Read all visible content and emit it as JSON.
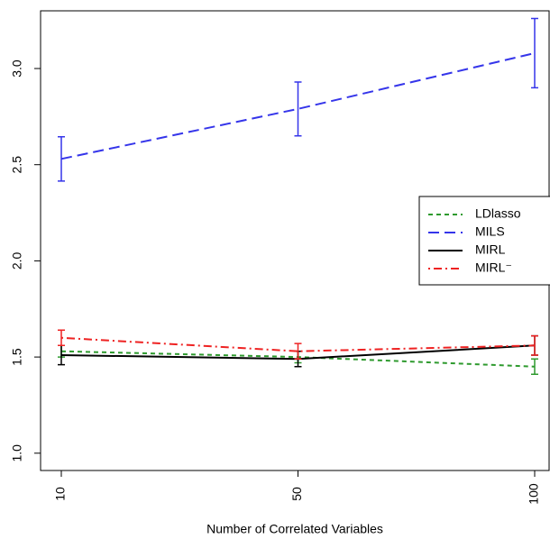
{
  "chart_data": {
    "type": "line",
    "x_label": "Number of Correlated Variables",
    "categories": [
      "10",
      "50",
      "100"
    ],
    "ylim": [
      0.91,
      3.3
    ],
    "yticks": [
      {
        "value": 1.0,
        "label": "1.0"
      },
      {
        "value": 1.5,
        "label": "1.5"
      },
      {
        "value": 2.0,
        "label": "2.0"
      },
      {
        "value": 2.5,
        "label": "2.5"
      },
      {
        "value": 3.0,
        "label": "3.0"
      }
    ],
    "legend": "right",
    "series": [
      {
        "name": "LDlasso",
        "color": "#2e9a2e",
        "linestyle": "dashed",
        "values": [
          1.53,
          1.5,
          1.45
        ],
        "errors": [
          0.03,
          0.03,
          0.04
        ]
      },
      {
        "name": "MILS",
        "color": "#3535ea",
        "linestyle": "longdash",
        "values": [
          2.53,
          2.79,
          3.08
        ],
        "errors": [
          0.115,
          0.14,
          0.18
        ]
      },
      {
        "name": "MIRL",
        "color": "#000000",
        "linestyle": "solid",
        "values": [
          1.51,
          1.49,
          1.56
        ],
        "errors": [
          0.05,
          0.04,
          0.05
        ]
      },
      {
        "name": "MIRL⁻",
        "color": "#ee2222",
        "linestyle": "dotdash",
        "values": [
          1.6,
          1.53,
          1.56
        ],
        "errors": [
          0.04,
          0.04,
          0.05
        ]
      }
    ]
  }
}
